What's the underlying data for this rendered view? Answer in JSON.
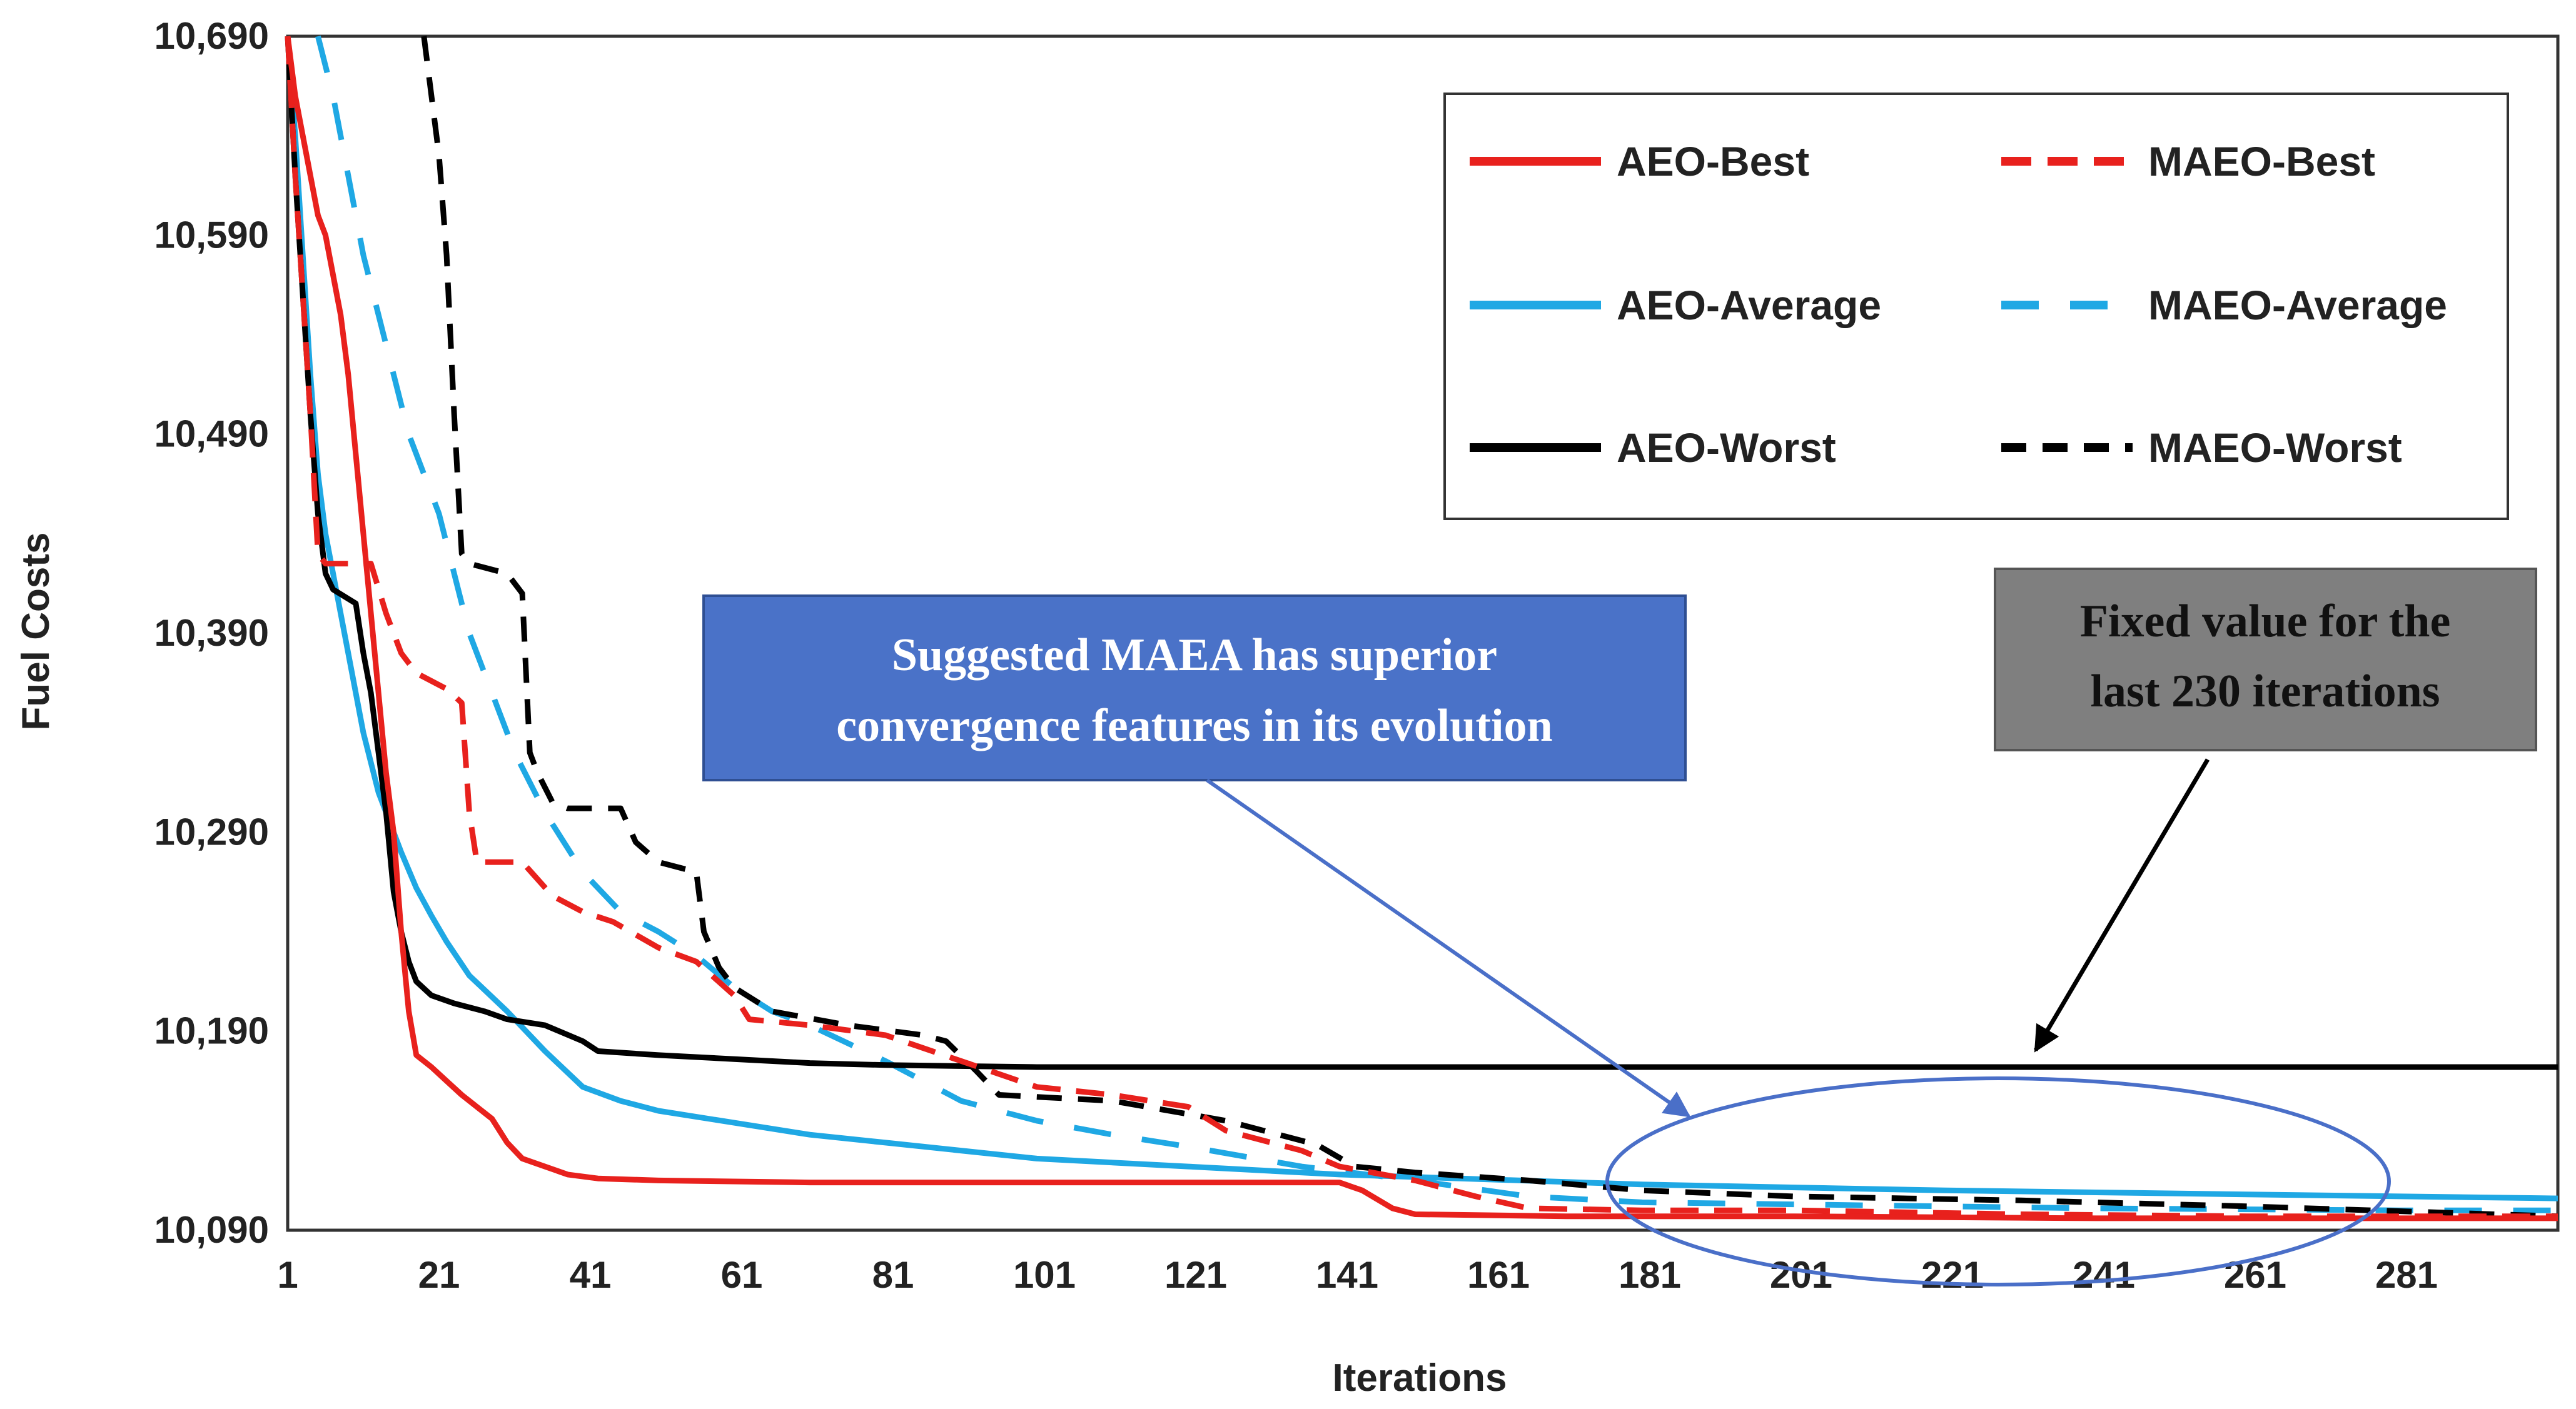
{
  "chart_data": {
    "type": "line",
    "title": "",
    "xlabel": "Iterations",
    "ylabel": "Fuel Costs",
    "xlim": [
      1,
      301
    ],
    "ylim": [
      10090,
      10690
    ],
    "x_ticks": [
      "1",
      "21",
      "41",
      "61",
      "81",
      "101",
      "121",
      "141",
      "161",
      "181",
      "201",
      "221",
      "241",
      "261",
      "281"
    ],
    "y_ticks": [
      "10,090",
      "10,190",
      "10,290",
      "10,390",
      "10,490",
      "10,590",
      "10,690"
    ],
    "legend_position": "top-right",
    "series": [
      {
        "name": "AEO-Best",
        "color": "#e8211d",
        "style": "solid",
        "points": [
          [
            1,
            10690
          ],
          [
            2,
            10660
          ],
          [
            3,
            10640
          ],
          [
            4,
            10620
          ],
          [
            5,
            10600
          ],
          [
            6,
            10590
          ],
          [
            7,
            10570
          ],
          [
            8,
            10550
          ],
          [
            9,
            10520
          ],
          [
            10,
            10480
          ],
          [
            11,
            10440
          ],
          [
            12,
            10400
          ],
          [
            13,
            10360
          ],
          [
            14,
            10320
          ],
          [
            15,
            10290
          ],
          [
            16,
            10240
          ],
          [
            17,
            10200
          ],
          [
            18,
            10178
          ],
          [
            20,
            10172
          ],
          [
            22,
            10165
          ],
          [
            24,
            10158
          ],
          [
            26,
            10152
          ],
          [
            28,
            10146
          ],
          [
            30,
            10134
          ],
          [
            32,
            10126
          ],
          [
            35,
            10122
          ],
          [
            38,
            10118
          ],
          [
            42,
            10116
          ],
          [
            50,
            10115
          ],
          [
            70,
            10114
          ],
          [
            100,
            10114
          ],
          [
            140,
            10114
          ],
          [
            143,
            10110
          ],
          [
            147,
            10101
          ],
          [
            150,
            10098
          ],
          [
            170,
            10097
          ],
          [
            200,
            10097
          ],
          [
            240,
            10096
          ],
          [
            301,
            10096
          ]
        ]
      },
      {
        "name": "MAEO-Best",
        "color": "#e8211d",
        "style": "dashed",
        "points": [
          [
            1,
            10690
          ],
          [
            2,
            10620
          ],
          [
            3,
            10560
          ],
          [
            4,
            10500
          ],
          [
            5,
            10430
          ],
          [
            6,
            10425
          ],
          [
            12,
            10425
          ],
          [
            14,
            10400
          ],
          [
            16,
            10380
          ],
          [
            18,
            10370
          ],
          [
            22,
            10362
          ],
          [
            24,
            10355
          ],
          [
            25,
            10300
          ],
          [
            26,
            10275
          ],
          [
            32,
            10275
          ],
          [
            36,
            10258
          ],
          [
            40,
            10250
          ],
          [
            44,
            10245
          ],
          [
            50,
            10232
          ],
          [
            55,
            10225
          ],
          [
            60,
            10208
          ],
          [
            62,
            10196
          ],
          [
            70,
            10193
          ],
          [
            80,
            10188
          ],
          [
            90,
            10175
          ],
          [
            100,
            10162
          ],
          [
            110,
            10158
          ],
          [
            120,
            10152
          ],
          [
            125,
            10140
          ],
          [
            135,
            10130
          ],
          [
            140,
            10122
          ],
          [
            150,
            10115
          ],
          [
            158,
            10107
          ],
          [
            165,
            10101
          ],
          [
            180,
            10100
          ],
          [
            200,
            10100
          ],
          [
            230,
            10098
          ],
          [
            260,
            10097
          ],
          [
            301,
            10097
          ]
        ]
      },
      {
        "name": "AEO-Average",
        "color": "#1fa8e4",
        "style": "solid",
        "points": [
          [
            1,
            10690
          ],
          [
            2,
            10640
          ],
          [
            3,
            10580
          ],
          [
            4,
            10520
          ],
          [
            5,
            10470
          ],
          [
            6,
            10440
          ],
          [
            7,
            10420
          ],
          [
            8,
            10400
          ],
          [
            9,
            10380
          ],
          [
            10,
            10360
          ],
          [
            11,
            10340
          ],
          [
            12,
            10325
          ],
          [
            13,
            10310
          ],
          [
            14,
            10300
          ],
          [
            16,
            10280
          ],
          [
            18,
            10262
          ],
          [
            20,
            10248
          ],
          [
            22,
            10235
          ],
          [
            25,
            10218
          ],
          [
            30,
            10200
          ],
          [
            35,
            10180
          ],
          [
            40,
            10162
          ],
          [
            45,
            10155
          ],
          [
            50,
            10150
          ],
          [
            60,
            10144
          ],
          [
            70,
            10138
          ],
          [
            80,
            10134
          ],
          [
            100,
            10126
          ],
          [
            120,
            10122
          ],
          [
            140,
            10118
          ],
          [
            180,
            10113
          ],
          [
            220,
            10110
          ],
          [
            260,
            10108
          ],
          [
            301,
            10106
          ]
        ]
      },
      {
        "name": "MAEO-Average",
        "color": "#1fa8e4",
        "style": "dashed",
        "points": [
          [
            5,
            10690
          ],
          [
            7,
            10660
          ],
          [
            9,
            10620
          ],
          [
            11,
            10580
          ],
          [
            13,
            10550
          ],
          [
            15,
            10520
          ],
          [
            17,
            10490
          ],
          [
            19,
            10470
          ],
          [
            21,
            10450
          ],
          [
            23,
            10420
          ],
          [
            25,
            10390
          ],
          [
            28,
            10360
          ],
          [
            31,
            10330
          ],
          [
            35,
            10300
          ],
          [
            40,
            10270
          ],
          [
            45,
            10250
          ],
          [
            50,
            10240
          ],
          [
            55,
            10228
          ],
          [
            60,
            10212
          ],
          [
            65,
            10200
          ],
          [
            70,
            10193
          ],
          [
            80,
            10175
          ],
          [
            90,
            10155
          ],
          [
            100,
            10145
          ],
          [
            110,
            10138
          ],
          [
            120,
            10132
          ],
          [
            135,
            10122
          ],
          [
            150,
            10115
          ],
          [
            165,
            10107
          ],
          [
            180,
            10104
          ],
          [
            200,
            10103
          ],
          [
            240,
            10101
          ],
          [
            280,
            10100
          ],
          [
            301,
            10100
          ]
        ]
      },
      {
        "name": "AEO-Worst",
        "color": "#000000",
        "style": "solid",
        "points": [
          [
            1,
            10690
          ],
          [
            2,
            10620
          ],
          [
            3,
            10560
          ],
          [
            4,
            10500
          ],
          [
            5,
            10450
          ],
          [
            6,
            10420
          ],
          [
            7,
            10412
          ],
          [
            10,
            10405
          ],
          [
            11,
            10380
          ],
          [
            12,
            10360
          ],
          [
            13,
            10330
          ],
          [
            14,
            10300
          ],
          [
            15,
            10260
          ],
          [
            16,
            10240
          ],
          [
            17,
            10225
          ],
          [
            18,
            10215
          ],
          [
            20,
            10208
          ],
          [
            23,
            10204
          ],
          [
            27,
            10200
          ],
          [
            30,
            10196
          ],
          [
            35,
            10193
          ],
          [
            40,
            10185
          ],
          [
            42,
            10180
          ],
          [
            50,
            10178
          ],
          [
            60,
            10176
          ],
          [
            70,
            10174
          ],
          [
            80,
            10173
          ],
          [
            100,
            10172
          ],
          [
            150,
            10172
          ],
          [
            301,
            10172
          ]
        ]
      },
      {
        "name": "MAEO-Worst",
        "color": "#000000",
        "style": "dashed",
        "points": [
          [
            19,
            10690
          ],
          [
            20,
            10660
          ],
          [
            21,
            10630
          ],
          [
            22,
            10580
          ],
          [
            23,
            10500
          ],
          [
            24,
            10430
          ],
          [
            25,
            10425
          ],
          [
            30,
            10420
          ],
          [
            32,
            10410
          ],
          [
            33,
            10330
          ],
          [
            34,
            10320
          ],
          [
            36,
            10305
          ],
          [
            38,
            10302
          ],
          [
            45,
            10302
          ],
          [
            47,
            10285
          ],
          [
            50,
            10275
          ],
          [
            55,
            10270
          ],
          [
            56,
            10240
          ],
          [
            58,
            10222
          ],
          [
            60,
            10212
          ],
          [
            65,
            10200
          ],
          [
            75,
            10193
          ],
          [
            85,
            10188
          ],
          [
            88,
            10185
          ],
          [
            92,
            10170
          ],
          [
            95,
            10158
          ],
          [
            110,
            10155
          ],
          [
            125,
            10145
          ],
          [
            137,
            10133
          ],
          [
            142,
            10122
          ],
          [
            150,
            10119
          ],
          [
            165,
            10115
          ],
          [
            180,
            10110
          ],
          [
            200,
            10107
          ],
          [
            230,
            10105
          ],
          [
            260,
            10102
          ],
          [
            301,
            10097
          ]
        ]
      }
    ],
    "annotations": {
      "blue_box": [
        "Suggested MAEA has superior",
        "convergence features in its evolution"
      ],
      "gray_box": [
        "Fixed value for the",
        "last 230 iterations"
      ]
    }
  }
}
